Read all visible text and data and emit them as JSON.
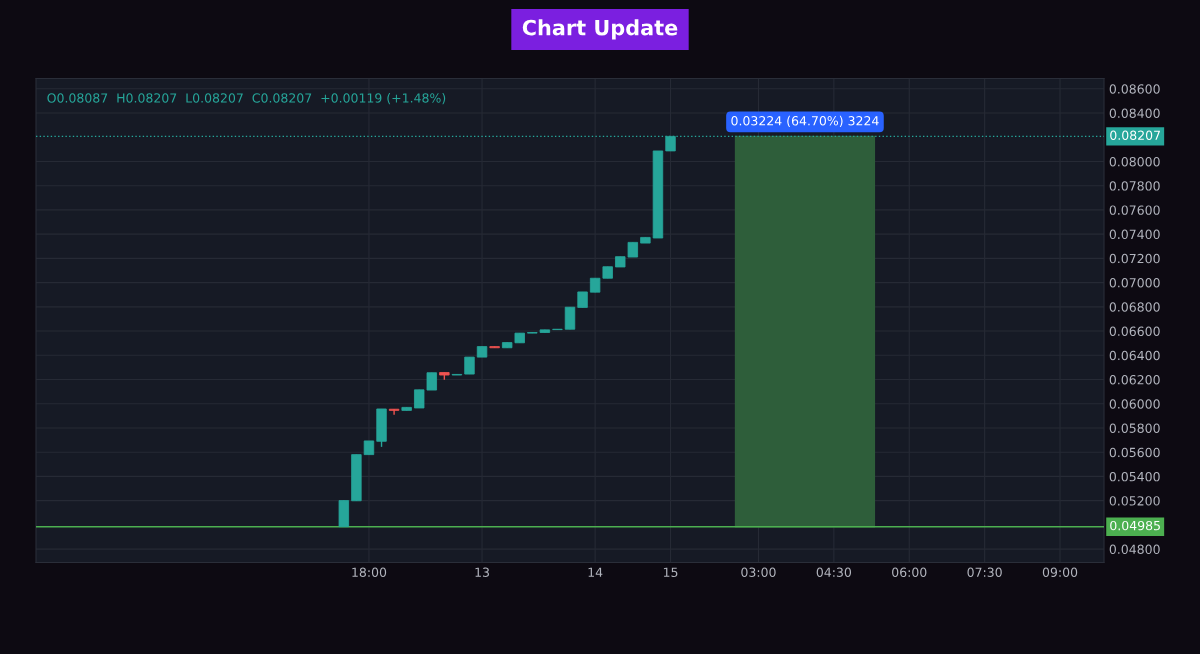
{
  "chart_data": {
    "type": "candlestick",
    "title": "Chart Update",
    "annotations": [
      "O0.08087  H0.08207  L0.08207  C0.08207  +0.00119 (+1.48%)"
    ],
    "categories": [
      null,
      null,
      null,
      null,
      null,
      null,
      null,
      null,
      null,
      null,
      null,
      null,
      null,
      null,
      null,
      null,
      null,
      null,
      null,
      null,
      null,
      null,
      null,
      null,
      null,
      null,
      "18:00",
      null,
      null,
      null,
      null,
      null,
      null,
      null,
      null,
      "13",
      null,
      null,
      null,
      null,
      null,
      null,
      null,
      null,
      "14",
      null,
      null,
      null,
      null,
      null,
      "15",
      null,
      null,
      null,
      null,
      null,
      null,
      "03:00",
      null,
      null,
      null,
      null,
      null,
      "04:30",
      null,
      null,
      null,
      null,
      null,
      "06:00",
      null,
      null,
      null,
      null,
      null,
      "07:30",
      null,
      null,
      null,
      null,
      null,
      "09:00",
      null,
      null,
      null
    ],
    "ohlc": [
      null,
      null,
      null,
      null,
      null,
      null,
      null,
      null,
      null,
      null,
      null,
      null,
      null,
      null,
      null,
      null,
      null,
      null,
      null,
      null,
      null,
      null,
      null,
      null,
      [
        0.04985,
        0.05201,
        0.04985,
        0.05201
      ],
      [
        0.05199,
        0.0558,
        0.05199,
        0.0558
      ],
      [
        0.0558,
        0.05693,
        0.0558,
        0.05693
      ],
      [
        0.0569,
        0.05957,
        0.05644,
        0.05957
      ],
      [
        0.05955,
        0.05957,
        0.0591,
        0.05945
      ],
      [
        0.05945,
        0.0597,
        0.05945,
        0.0597
      ],
      [
        0.05965,
        0.06115,
        0.05965,
        0.06115
      ],
      [
        0.06113,
        0.06256,
        0.06113,
        0.06256
      ],
      [
        0.06258,
        0.06258,
        0.06198,
        0.06237
      ],
      [
        0.06237,
        0.06242,
        0.06237,
        0.06242
      ],
      [
        0.06245,
        0.06385,
        0.06245,
        0.06385
      ],
      [
        0.06385,
        0.06472,
        0.06385,
        0.06472
      ],
      [
        0.06472,
        0.06472,
        0.06462,
        0.06462
      ],
      [
        0.06462,
        0.06505,
        0.06462,
        0.06505
      ],
      [
        0.06503,
        0.06583,
        0.06503,
        0.06583
      ],
      [
        0.06583,
        0.06588,
        0.06583,
        0.06588
      ],
      [
        0.06588,
        0.0661,
        0.06588,
        0.0661
      ],
      [
        0.06612,
        0.06615,
        0.06612,
        0.06615
      ],
      [
        0.06615,
        0.06797,
        0.06615,
        0.06797
      ],
      [
        0.06795,
        0.06923,
        0.06795,
        0.06923
      ],
      [
        0.06921,
        0.07036,
        0.06921,
        0.07036
      ],
      [
        0.07036,
        0.07131,
        0.07036,
        0.07131
      ],
      [
        0.07129,
        0.07214,
        0.07129,
        0.07214
      ],
      [
        0.07211,
        0.07332,
        0.07211,
        0.07332
      ],
      [
        0.07326,
        0.07373,
        0.07326,
        0.07373
      ],
      [
        0.07368,
        0.08087,
        0.07368,
        0.08087
      ],
      [
        0.08087,
        0.08207,
        0.08087,
        0.08207
      ],
      null,
      null,
      null,
      null,
      null,
      null,
      null,
      null,
      null,
      null,
      null,
      null,
      null,
      null,
      null,
      null,
      null,
      null,
      null,
      null,
      null,
      null,
      null,
      null,
      null,
      null,
      null,
      null,
      null,
      null,
      null,
      null,
      null,
      null
    ],
    "colors": [
      null,
      null,
      null,
      null,
      null,
      null,
      null,
      null,
      null,
      null,
      null,
      null,
      null,
      null,
      null,
      null,
      null,
      null,
      null,
      null,
      null,
      null,
      null,
      null,
      "#26a69a",
      "#26a69a",
      "#26a69a",
      "#26a69a",
      "#ef5350",
      "#26a69a",
      "#26a69a",
      "#26a69a",
      "#ef5350",
      "#26a69a",
      "#26a69a",
      "#26a69a",
      "#ef5350",
      "#26a69a",
      "#26a69a",
      "#26a69a",
      "#26a69a",
      "#26a69a",
      "#26a69a",
      "#26a69a",
      "#26a69a",
      "#26a69a",
      "#26a69a",
      "#26a69a",
      "#26a69a",
      "#26a69a",
      "#26a69a",
      null,
      null,
      null,
      null,
      null,
      null,
      null,
      null,
      null,
      null,
      null,
      null,
      null,
      null,
      null,
      null,
      null,
      null,
      null,
      null,
      null,
      null,
      null,
      null,
      null,
      null,
      null,
      null,
      null,
      null,
      null,
      null,
      null,
      null
    ],
    "ylim": [
      0.0469,
      0.08685
    ],
    "yticks": [
      {
        "value": 0.048,
        "label": "0.04800"
      },
      {
        "value": 0.052,
        "label": "0.05200"
      },
      {
        "value": 0.054,
        "label": "0.05400"
      },
      {
        "value": 0.056,
        "label": "0.05600"
      },
      {
        "value": 0.058,
        "label": "0.05800"
      },
      {
        "value": 0.06,
        "label": "0.06000"
      },
      {
        "value": 0.062,
        "label": "0.06200"
      },
      {
        "value": 0.064,
        "label": "0.06400"
      },
      {
        "value": 0.066,
        "label": "0.06600"
      },
      {
        "value": 0.068,
        "label": "0.06800"
      },
      {
        "value": 0.07,
        "label": "0.07000"
      },
      {
        "value": 0.072,
        "label": "0.07200"
      },
      {
        "value": 0.074,
        "label": "0.07400"
      },
      {
        "value": 0.076,
        "label": "0.07600"
      },
      {
        "value": 0.078,
        "label": "0.07800"
      },
      {
        "value": 0.08,
        "label": "0.08000"
      },
      {
        "value": 0.084,
        "label": "0.08400"
      },
      {
        "value": 0.086,
        "label": "0.08600"
      }
    ],
    "ref_lines": [
      {
        "axis": "y",
        "value": 0.08207,
        "label": "0.08207",
        "color": "#26a69a",
        "line_style": "dotted"
      },
      {
        "axis": "y",
        "value": 0.04985,
        "label": "0.04985",
        "color": "#4caf50",
        "line_style": "solid"
      }
    ],
    "bands": [
      {
        "axis": "y",
        "from": 0.04985,
        "to": 0.08207,
        "label": "0.03224 (64.70%) 3224",
        "color": "#2e5e3a"
      }
    ],
    "grid": true,
    "legend": false
  }
}
